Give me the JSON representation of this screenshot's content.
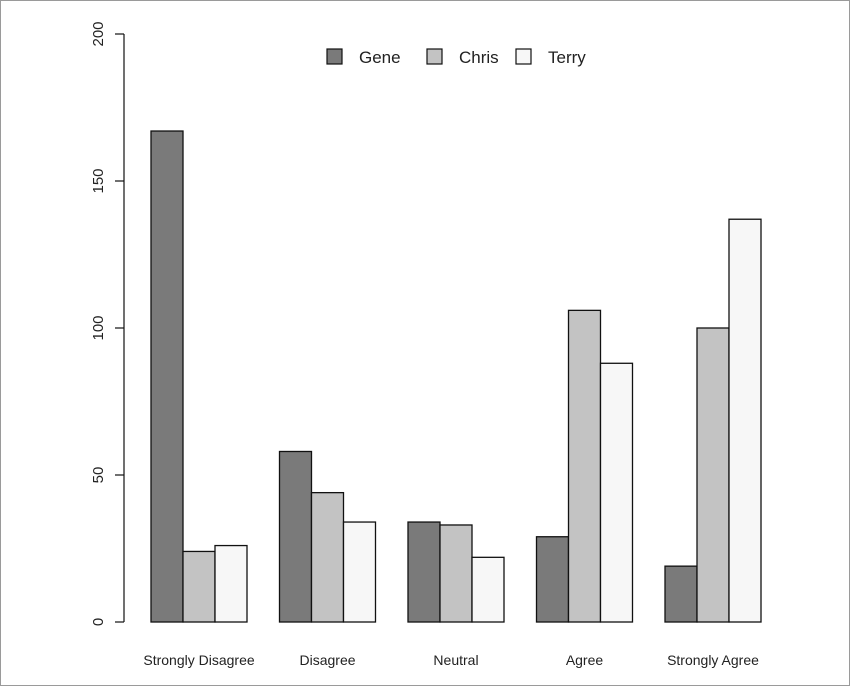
{
  "chart_data": {
    "type": "bar",
    "categories": [
      "Strongly Disagree",
      "Disagree",
      "Neutral",
      "Agree",
      "Strongly Agree"
    ],
    "series": [
      {
        "name": "Gene",
        "values": [
          167,
          58,
          34,
          29,
          19
        ]
      },
      {
        "name": "Chris",
        "values": [
          24,
          44,
          33,
          106,
          100
        ]
      },
      {
        "name": "Terry",
        "values": [
          26,
          34,
          22,
          88,
          137
        ]
      }
    ],
    "ylim": [
      0,
      200
    ],
    "yticks": [
      "0",
      "50",
      "100",
      "150",
      "200"
    ],
    "legend_position": "top-center",
    "grid": false,
    "colors": {
      "Gene": "#7a7a7a",
      "Chris": "#c3c3c3",
      "Terry": "#f7f7f7",
      "stroke": "#111111"
    }
  }
}
